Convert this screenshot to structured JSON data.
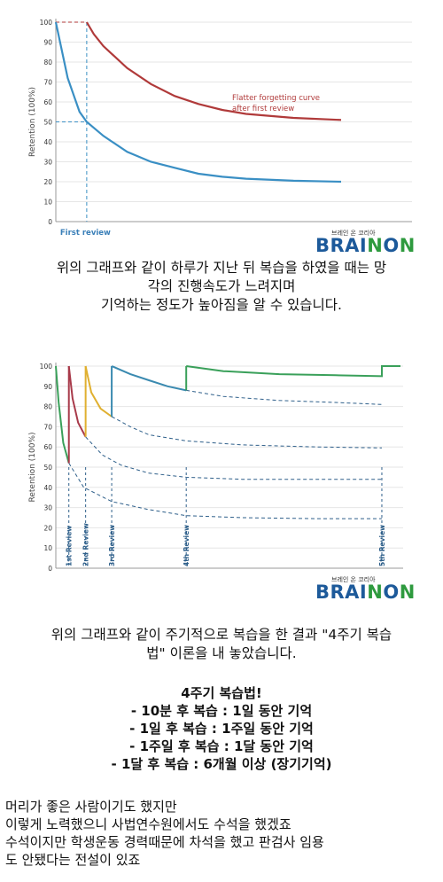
{
  "chart_data": [
    {
      "type": "line",
      "ylabel": "Retention (100%)",
      "yticks": [
        0,
        10,
        20,
        30,
        40,
        50,
        60,
        70,
        80,
        90,
        100
      ],
      "ylim": [
        0,
        100
      ],
      "x_markers": [
        {
          "label": "First review"
        }
      ],
      "annotations": [
        "Flatter forgetting curve",
        "after first review"
      ],
      "series": [
        {
          "name": "",
          "color": "#3a8fc4",
          "points": [
            [
              0,
              100
            ],
            [
              0.5,
              72
            ],
            [
              1,
              55
            ],
            [
              1.3,
              50
            ],
            [
              2,
              43
            ],
            [
              3,
              35
            ],
            [
              4,
              30
            ],
            [
              5,
              27
            ],
            [
              6,
              24
            ],
            [
              7,
              22.5
            ],
            [
              8,
              21.5
            ],
            [
              10,
              20.5
            ],
            [
              12,
              20
            ]
          ]
        },
        {
          "name": "",
          "color": "#b03a3a",
          "points": [
            [
              1.3,
              100
            ],
            [
              1.6,
              94
            ],
            [
              2,
              88
            ],
            [
              3,
              77
            ],
            [
              4,
              69
            ],
            [
              5,
              63
            ],
            [
              6,
              59
            ],
            [
              7,
              56
            ],
            [
              8,
              54
            ],
            [
              10,
              52
            ],
            [
              12,
              51
            ]
          ]
        }
      ]
    },
    {
      "type": "line",
      "ylabel": "Retention (100%)",
      "yticks": [
        0,
        10,
        20,
        30,
        40,
        50,
        60,
        70,
        80,
        90,
        100
      ],
      "ylim": [
        0,
        100
      ],
      "x_markers": [
        {
          "label": "1st Review"
        },
        {
          "label": "2nd Review"
        },
        {
          "label": "3rd Review"
        },
        {
          "label": "4th Review"
        },
        {
          "label": "5th Review"
        }
      ],
      "series": [
        {
          "name": "",
          "color": "#3aa05a",
          "points": [
            [
              0,
              100
            ],
            [
              0.15,
              82
            ],
            [
              0.4,
              62
            ],
            [
              0.7,
              52
            ]
          ]
        },
        {
          "name": "",
          "color": "#a83a4a",
          "points": [
            [
              0.7,
              100
            ],
            [
              0.9,
              84
            ],
            [
              1.2,
              72
            ],
            [
              1.6,
              65
            ]
          ]
        },
        {
          "name": "",
          "color": "#e0b030",
          "points": [
            [
              1.6,
              100
            ],
            [
              1.9,
              87
            ],
            [
              2.4,
              79
            ],
            [
              3,
              75
            ]
          ]
        },
        {
          "name": "",
          "color": "#3a8ab0",
          "points": [
            [
              3,
              100
            ],
            [
              4,
              96
            ],
            [
              5,
              93
            ],
            [
              6,
              90
            ],
            [
              7,
              88
            ]
          ]
        },
        {
          "name": "",
          "color": "#3aa05a",
          "points": [
            [
              7,
              100
            ],
            [
              9,
              97.5
            ],
            [
              12,
              96
            ],
            [
              15,
              95.5
            ],
            [
              17.5,
              95
            ],
            [
              17.5,
              100
            ],
            [
              18.5,
              100
            ]
          ]
        }
      ]
    }
  ],
  "logo": {
    "small_text": "브레인 온 코리아",
    "brand": "BRAINON"
  },
  "para1": {
    "line1": "위의 그래프와 같이 하루가 지난 뒤 복습을 하였을 때는 망",
    "line2": "각의 진행속도가 느려지며",
    "line3": "기억하는 정도가 높아짐을 알 수 있습니다."
  },
  "para2": {
    "line1": "위의 그래프와 같이 주기적으로 복습을 한 결과 \"4주기 복습",
    "line2": "법\" 이론을 내 놓았습니다."
  },
  "method": {
    "title": "4주기 복습법!",
    "items": [
      "- 10분 후 복습 : 1일 동안 기억",
      "- 1일 후 복습 : 1주일 동안 기억",
      "- 1주일 후 복습 : 1달 동안 기억",
      "- 1달 후 복습 : 6개월 이상 (장기기억)"
    ]
  },
  "story": {
    "line1": "머리가 좋은 사람이기도 했지만",
    "line2": "이렇게 노력했으니 사법연수원에서도 수석을 했겠죠",
    "line3": "수석이지만 학생운동 경력때문에 차석을 했고 판검사 임용",
    "line4": "도 안됐다는 전설이 있죠"
  }
}
